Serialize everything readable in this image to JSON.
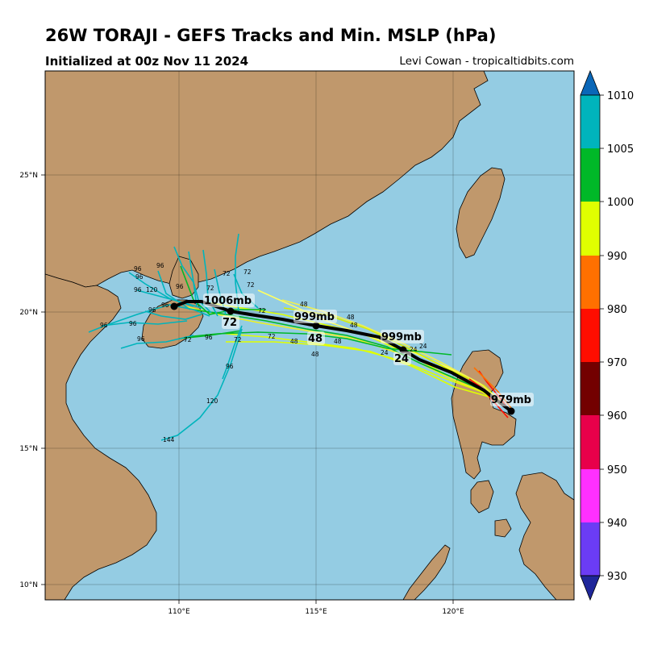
{
  "header": {
    "title": "26W TORAJI - GEFS Tracks and Min. MSLP (hPa)",
    "subtitle": "Initialized at 00z Nov 11 2024",
    "credit": "Levi Cowan - tropicaltidbits.com"
  },
  "map": {
    "lon_ticks": [
      "110°E",
      "115°E",
      "120°E"
    ],
    "lat_ticks": [
      "10°N",
      "15°N",
      "20°N",
      "25°N"
    ],
    "colors": {
      "ocean": "#94cce3",
      "land": "#c0986c",
      "mean_track": "#000000"
    }
  },
  "mean_track": {
    "pressure_labels": [
      "979mb",
      "999mb",
      "999mb",
      "1006mb"
    ],
    "hour_labels": [
      "24",
      "48",
      "72"
    ]
  },
  "member_hour_labels": {
    "h24": "24",
    "h48": "48",
    "h72": "72",
    "h96": "96",
    "h120": "120",
    "h144": "144"
  },
  "colorbar": {
    "ticks": [
      "930",
      "940",
      "950",
      "960",
      "970",
      "980",
      "990",
      "1000",
      "1005",
      "1010"
    ],
    "colors": [
      "#6b3cf5",
      "#ff30ff",
      "#e8004a",
      "#730000",
      "#ff0d00",
      "#ff7000",
      "#e0ff00",
      "#00b828",
      "#00b4bc"
    ],
    "under_color": "#1f279a",
    "over_color": "#0a67b8"
  }
}
